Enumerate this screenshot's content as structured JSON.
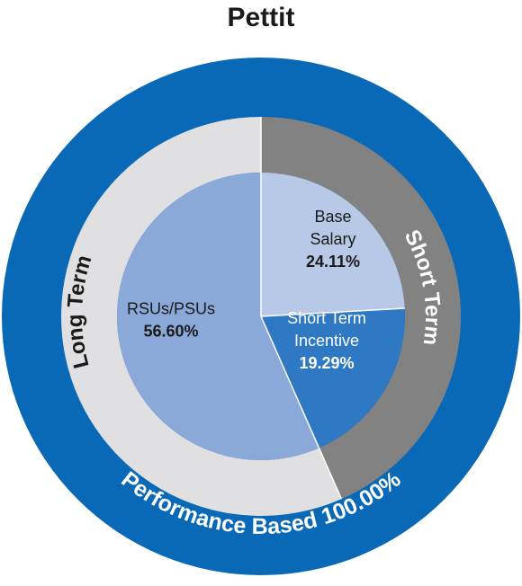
{
  "chart_data": {
    "type": "pie",
    "title": "Pettit",
    "inner": {
      "slices": [
        {
          "label": "Base Salary",
          "value": 24.11,
          "display": "24.11%",
          "color": "#b8c9e8",
          "text_color": "#1a1a1a"
        },
        {
          "label": "Short Term Incentive",
          "value": 19.29,
          "display": "19.29%",
          "color": "#2f78c4",
          "text_color": "#ffffff"
        },
        {
          "label": "RSUs/PSUs",
          "value": 56.6,
          "display": "56.60%",
          "color": "#8aa8d8",
          "text_color": "#1a1a1a"
        }
      ]
    },
    "middle": {
      "segments": [
        {
          "label": "Short Term",
          "value": 43.4,
          "color": "#828282",
          "text_color": "#ffffff"
        },
        {
          "label": "Long Term",
          "value": 56.6,
          "color": "#e0e0e2",
          "text_color": "#1a1a1a"
        }
      ]
    },
    "outer": {
      "label": "Performance Based 100.00%",
      "value": 100.0,
      "color": "#0a69b6",
      "text_color": "#ffffff"
    }
  }
}
